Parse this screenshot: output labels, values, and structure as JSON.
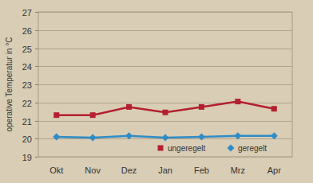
{
  "chart_data": {
    "type": "line",
    "y_label": "operative Temperatur in °C",
    "categories": [
      "Okt",
      "Nov",
      "Dez",
      "Jan",
      "Feb",
      "Mrz",
      "Apr"
    ],
    "series": [
      {
        "name": "ungeregelt",
        "color": "#b3202f",
        "marker": "square",
        "values": [
          21.3,
          21.3,
          21.75,
          21.45,
          21.75,
          22.05,
          21.65
        ]
      },
      {
        "name": "geregelt",
        "color": "#2f8cc6",
        "marker": "diamond",
        "values": [
          20.1,
          20.05,
          20.15,
          20.05,
          20.1,
          20.15,
          20.15
        ]
      }
    ],
    "ylim": [
      19,
      27
    ],
    "yticks": [
      19,
      20,
      21,
      22,
      23,
      24,
      25,
      26,
      27
    ],
    "grid": true,
    "legend": "lower right"
  }
}
